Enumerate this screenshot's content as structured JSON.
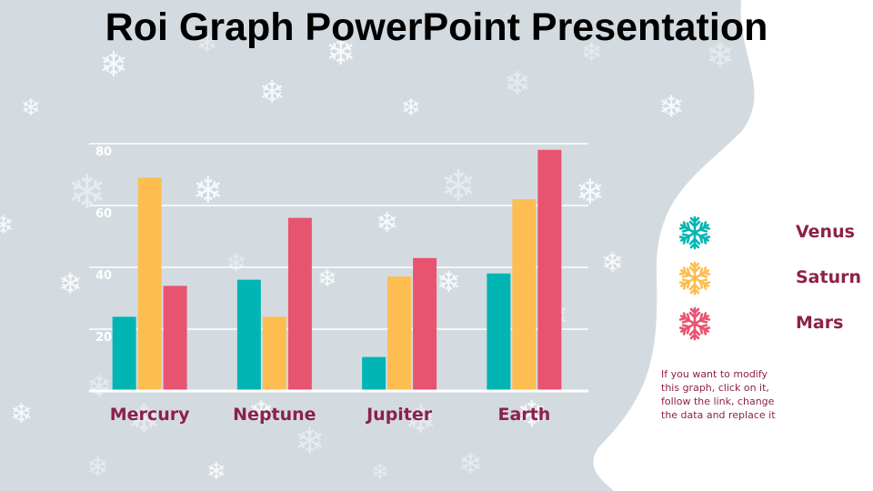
{
  "slide": {
    "title": "Roi Graph PowerPoint Presentation",
    "note": "If you want to modify this graph, click on it, follow the link, change the data and replace it"
  },
  "colors": {
    "background": "#d3dbe0",
    "panel": "#ffffff",
    "teal": "#02b5b5",
    "yellow": "#fdbd50",
    "red": "#e85370",
    "label": "#8d2148",
    "snow": "#ffffff"
  },
  "legend": [
    {
      "label": "Venus",
      "color": "#02b5b5",
      "icon": "snowflake-icon"
    },
    {
      "label": "Saturn",
      "color": "#fdbd50",
      "icon": "snowflake-icon"
    },
    {
      "label": "Mars",
      "color": "#e85370",
      "icon": "snowflake-icon"
    }
  ],
  "chart_data": {
    "type": "bar",
    "title": "",
    "xlabel": "",
    "ylabel": "",
    "categories": [
      "Mercury",
      "Neptune",
      "Jupiter",
      "Earth"
    ],
    "series": [
      {
        "name": "Venus",
        "color": "#02b5b5",
        "values": [
          24,
          36,
          11,
          38
        ]
      },
      {
        "name": "Saturn",
        "color": "#fdbd50",
        "values": [
          69,
          24,
          37,
          62
        ]
      },
      {
        "name": "Mars",
        "color": "#e85370",
        "values": [
          34,
          56,
          43,
          78
        ]
      }
    ],
    "yticks": [
      20,
      40,
      60,
      80
    ],
    "ylim": [
      0,
      80
    ],
    "grid": true,
    "legend_position": "right"
  }
}
